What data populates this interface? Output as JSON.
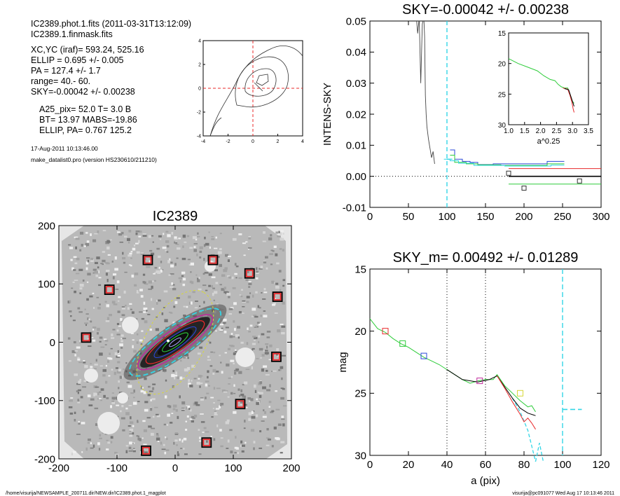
{
  "info": {
    "lines_top": [
      "IC2389.phot.1.fits  (2011-03-31T13:12:09)",
      "IC2389.1.finmask.fits"
    ],
    "lines_mid": [
      "XC,YC (iraf)=   593.24, 525.16",
      "ELLIP = 0.695 +/- 0.005",
      "PA    = 127.4 +/-   1.7",
      "range=   40.-   60.",
      "SKY=-0.00042 +/- 0.00238"
    ],
    "lines_low": [
      "A25_pix= 52.0   T= 3.0  B",
      "BT=  13.97    MABS=-19.86",
      "ELLIP, PA= 0.767   125.2"
    ],
    "lines_small": [
      "17-Aug-2011 10:13:46.00",
      "make_datalist0.pro (version HS230610/211210)"
    ]
  },
  "footer": {
    "left": "/home/visurija/NEWSAMPLE_200711.dir/NEW.dir/IC2389.phot.1_magplot",
    "right": "visurija@pc091077  Wed Aug 17 10:13:46 2011"
  },
  "colors": {
    "cyan": "#33d6e6",
    "red": "#e8282a",
    "green": "#2ecc3a",
    "blue": "#2a48d8",
    "magenta": "#c0299c",
    "yellow": "#d8d83a",
    "black": "#000000",
    "gray": "#bfbfbf"
  },
  "chart_data": [
    {
      "id": "contour",
      "type": "contour",
      "xlim": [
        -4,
        4
      ],
      "ylim": [
        -4,
        4
      ],
      "xticks": [
        "-4",
        "-2",
        "0",
        "2",
        "4"
      ],
      "yticks": [
        "4",
        "2",
        "0",
        "-2",
        "-4"
      ]
    },
    {
      "id": "sky",
      "type": "line",
      "title": "SKY=-0.00042 +/- 0.00238",
      "ylabel": "INTENS-SKY",
      "xlim": [
        0,
        300
      ],
      "ylim": [
        -0.01,
        0.05
      ],
      "xticks": [
        "0",
        "50",
        "100",
        "150",
        "200",
        "250",
        "300"
      ],
      "yticks": [
        "0.05",
        "0.04",
        "0.03",
        "0.02",
        "0.01",
        "0.00",
        "-0.01"
      ],
      "vline_x": 100,
      "black_profile": [
        [
          60,
          0.052
        ],
        [
          62,
          0.046
        ],
        [
          64,
          0.051
        ],
        [
          66,
          0.03
        ],
        [
          68,
          0.049
        ],
        [
          70,
          0.051
        ],
        [
          71,
          0.045
        ],
        [
          72,
          0.026
        ],
        [
          73,
          0.02
        ],
        [
          74,
          0.016
        ],
        [
          76,
          0.012
        ],
        [
          78,
          0.009
        ],
        [
          80,
          0.006
        ],
        [
          82,
          0.008
        ],
        [
          84,
          0.004
        ]
      ],
      "steps_blue": [
        [
          104,
          0.0085
        ],
        [
          110,
          0.0055
        ],
        [
          120,
          0.0048
        ],
        [
          130,
          0.0045
        ],
        [
          140,
          0.0038
        ],
        [
          160,
          0.004
        ],
        [
          180,
          0.004
        ],
        [
          210,
          0.004
        ],
        [
          230,
          0.0048
        ],
        [
          245,
          0.0048
        ]
      ],
      "steps_green": [
        [
          104,
          0.0068
        ],
        [
          110,
          0.0045
        ],
        [
          125,
          0.004
        ],
        [
          140,
          0.0037
        ],
        [
          170,
          0.0035
        ],
        [
          210,
          0.0035
        ],
        [
          230,
          0.004
        ],
        [
          245,
          0.004
        ]
      ],
      "steps_cyan": [
        [
          96,
          0.0055
        ],
        [
          104,
          0.005
        ],
        [
          115,
          0.0042
        ],
        [
          135,
          0.0035
        ],
        [
          175,
          0.0033
        ],
        [
          215,
          0.0033
        ],
        [
          235,
          0.0036
        ],
        [
          245,
          0.0036
        ]
      ],
      "lines_h": [
        {
          "color": "red",
          "y": 0.0025,
          "x": [
            180,
            300
          ]
        },
        {
          "color": "black",
          "y": 0.0,
          "x": [
            180,
            300
          ]
        },
        {
          "color": "green",
          "y": -0.0025,
          "x": [
            180,
            300
          ]
        }
      ],
      "squares": [
        [
          180,
          0.001
        ],
        [
          200,
          -0.0038
        ],
        [
          272,
          -0.0015
        ]
      ]
    },
    {
      "id": "inset",
      "type": "line",
      "xlabel": "a^0.25",
      "xlim": [
        1.0,
        3.5
      ],
      "ylim": [
        15,
        30
      ],
      "xticks": [
        "1.0",
        "1.5",
        "2.0",
        "2.5",
        "3.0",
        "3.5"
      ],
      "yticks": [
        "15",
        "20",
        "25",
        "30"
      ],
      "green": [
        [
          1.0,
          19.2
        ],
        [
          1.3,
          20.0
        ],
        [
          1.6,
          20.6
        ],
        [
          1.9,
          21.2
        ],
        [
          2.1,
          22.0
        ],
        [
          2.3,
          22.6
        ],
        [
          2.45,
          22.8
        ],
        [
          2.55,
          23.4
        ],
        [
          2.65,
          23.8
        ],
        [
          2.75,
          24.0
        ],
        [
          2.85,
          24.0
        ],
        [
          2.92,
          25.0
        ],
        [
          3.0,
          26.2
        ],
        [
          3.05,
          26.5
        ]
      ],
      "red": [
        [
          2.7,
          24.0
        ],
        [
          2.85,
          24.2
        ],
        [
          2.92,
          25.2
        ],
        [
          2.98,
          26.3
        ],
        [
          3.02,
          27.4
        ],
        [
          3.05,
          28.0
        ]
      ],
      "black": [
        [
          2.75,
          24.1
        ],
        [
          2.88,
          24.3
        ],
        [
          2.95,
          25.4
        ],
        [
          3.0,
          26.2
        ],
        [
          3.05,
          27.0
        ]
      ]
    },
    {
      "id": "image",
      "type": "scatter",
      "title": "IC2389",
      "xlim": [
        -200,
        200
      ],
      "ylim": [
        -200,
        200
      ],
      "xticks": [
        "-200",
        "-100",
        "0",
        "100",
        "200"
      ],
      "yticks": [
        "200",
        "100",
        "0",
        "-100",
        "-200"
      ],
      "markers": [
        [
          -47,
          141
        ],
        [
          65,
          141
        ],
        [
          -113,
          90
        ],
        [
          128,
          118
        ],
        [
          176,
          78
        ],
        [
          -153,
          8
        ],
        [
          174,
          -25
        ],
        [
          112,
          -106
        ],
        [
          -50,
          -186
        ],
        [
          54,
          -172
        ]
      ]
    },
    {
      "id": "mag",
      "type": "line",
      "title": "SKY_m=  0.00492 +/- 0.01289",
      "xlabel": "a (pix)",
      "ylabel": "mag",
      "xlim": [
        0,
        120
      ],
      "ylim": [
        15,
        30
      ],
      "xticks": [
        "0",
        "20",
        "40",
        "60",
        "80",
        "100",
        "120"
      ],
      "yticks": [
        "15",
        "20",
        "25",
        "30"
      ],
      "dotted_x": [
        40,
        60
      ],
      "vline_x": 100,
      "green": [
        [
          0,
          19.0
        ],
        [
          4,
          19.8
        ],
        [
          8,
          20.1
        ],
        [
          12,
          20.6
        ],
        [
          16,
          21.0
        ],
        [
          20,
          21.3
        ],
        [
          24,
          21.7
        ],
        [
          28,
          22.1
        ],
        [
          32,
          22.4
        ],
        [
          36,
          22.7
        ],
        [
          40,
          23.1
        ],
        [
          44,
          23.5
        ],
        [
          48,
          23.9
        ],
        [
          52,
          24.2
        ],
        [
          56,
          24.0
        ],
        [
          60,
          23.9
        ],
        [
          64,
          23.9
        ],
        [
          66,
          23.5
        ],
        [
          70,
          24.4
        ],
        [
          74,
          25.0
        ],
        [
          78,
          25.6
        ],
        [
          82,
          26.1
        ],
        [
          84,
          26.0
        ],
        [
          86,
          26.5
        ]
      ],
      "black": [
        [
          40,
          23.1
        ],
        [
          48,
          23.9
        ],
        [
          56,
          24.1
        ],
        [
          62,
          23.9
        ],
        [
          66,
          23.6
        ],
        [
          70,
          24.5
        ],
        [
          74,
          25.4
        ],
        [
          78,
          26.2
        ],
        [
          82,
          26.6
        ],
        [
          86,
          26.8
        ]
      ],
      "red": [
        [
          66,
          23.6
        ],
        [
          70,
          24.6
        ],
        [
          74,
          25.7
        ],
        [
          78,
          26.7
        ],
        [
          80,
          27.3
        ],
        [
          82,
          27.0
        ],
        [
          84,
          27.4
        ],
        [
          86,
          27.9
        ]
      ],
      "cyan_dash": [
        [
          74,
          25.4
        ],
        [
          78,
          26.5
        ],
        [
          82,
          28.0
        ],
        [
          86,
          30.5
        ]
      ],
      "cyan_dash_b": [
        [
          86,
          30.5
        ],
        [
          88,
          29.0
        ],
        [
          90,
          30.5
        ]
      ],
      "cyan_h": [
        [
          100,
          26.3
        ],
        [
          110,
          26.3
        ]
      ],
      "squares": [
        {
          "x": 8,
          "y": 20.0,
          "c": "red"
        },
        {
          "x": 17,
          "y": 21.0,
          "c": "green"
        },
        {
          "x": 28,
          "y": 22.0,
          "c": "blue"
        },
        {
          "x": 57,
          "y": 24.0,
          "c": "magenta"
        },
        {
          "x": 78,
          "y": 25.0,
          "c": "yellow"
        }
      ]
    }
  ]
}
